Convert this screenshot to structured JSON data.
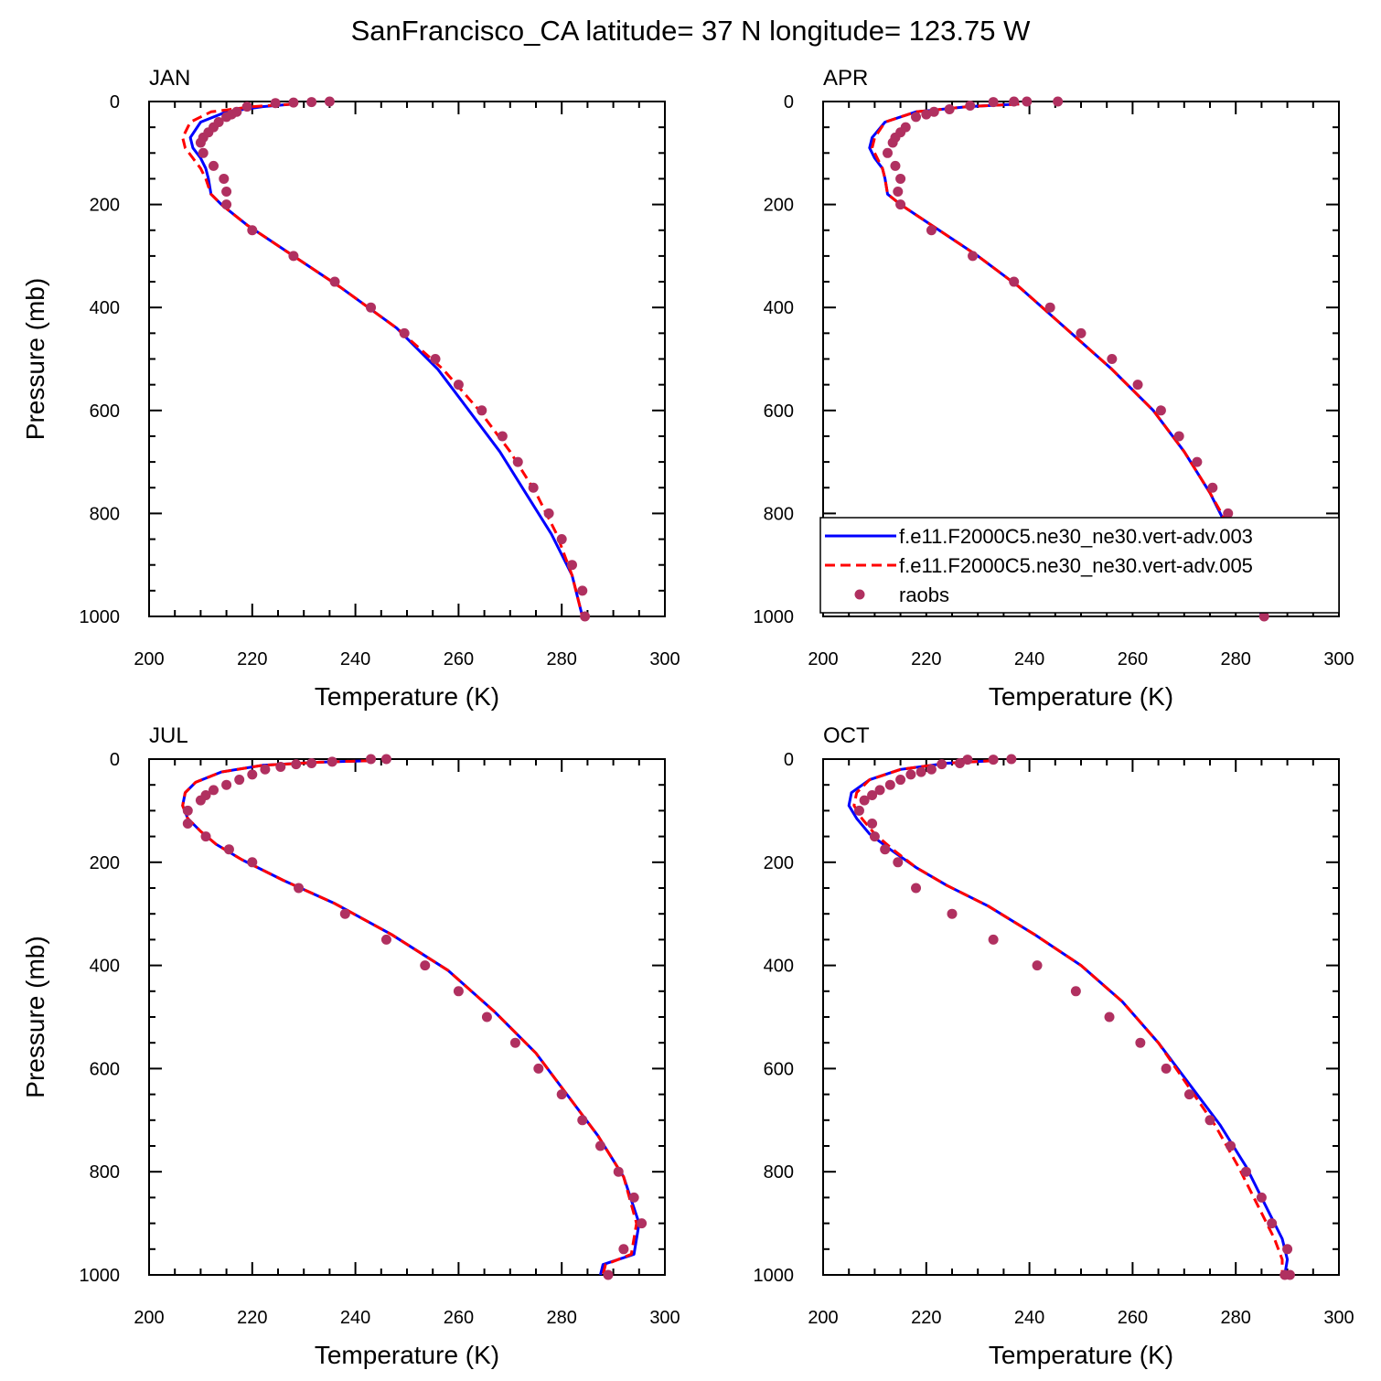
{
  "title": "SanFrancisco_CA  latitude= 37 N longitude= 123.75 W",
  "legend": {
    "placement": "bottom-right of APR panel",
    "entries": [
      {
        "label": "f.e11.F2000C5.ne30_ne30.vert-adv.003",
        "color": "#0000ff",
        "style": "solid"
      },
      {
        "label": "f.e11.F2000C5.ne30_ne30.vert-adv.005",
        "color": "#ff0000",
        "style": "dashed"
      },
      {
        "label": "raobs",
        "color": "#b03060",
        "style": "marker"
      }
    ]
  },
  "chart_data": [
    {
      "type": "line",
      "panel": "JAN",
      "title": "JAN",
      "xlabel": "Temperature (K)",
      "ylabel": "Pressure (mb)",
      "xlim": [
        200,
        300
      ],
      "ylim": [
        1000,
        0
      ],
      "xticks": [
        200,
        220,
        240,
        260,
        280,
        300
      ],
      "yticks": [
        0,
        200,
        400,
        600,
        800,
        1000
      ],
      "series": [
        {
          "name": "f.e11.F2000C5.ne30_ne30.vert-adv.003",
          "color": "#0000ff",
          "style": "solid",
          "x": [
            228,
            222,
            215,
            210,
            208,
            208.5,
            210,
            211,
            211.5,
            212,
            214,
            219,
            228,
            237,
            248,
            256,
            262,
            268,
            273,
            278,
            282,
            284
          ],
          "y": [
            5,
            10,
            20,
            40,
            70,
            90,
            110,
            130,
            150,
            180,
            200,
            240,
            300,
            360,
            440,
            520,
            600,
            680,
            760,
            840,
            920,
            1000
          ]
        },
        {
          "name": "f.e11.F2000C5.ne30_ne30.vert-adv.005",
          "color": "#ff0000",
          "style": "dashed",
          "x": [
            228,
            220,
            212,
            208,
            206.5,
            207,
            208.5,
            210,
            211,
            212,
            214,
            219,
            228,
            237,
            248,
            257,
            264,
            270,
            275,
            279,
            282,
            284
          ],
          "y": [
            5,
            10,
            20,
            40,
            70,
            90,
            110,
            130,
            150,
            180,
            200,
            240,
            300,
            360,
            440,
            520,
            600,
            680,
            760,
            840,
            920,
            1000
          ]
        },
        {
          "name": "raobs",
          "color": "#b03060",
          "style": "marker",
          "x": [
            235,
            231.5,
            228,
            224.5,
            219,
            217,
            216,
            215,
            213.5,
            212.5,
            211.5,
            210.5,
            210,
            210.5,
            212.5,
            214.5,
            215,
            215,
            220,
            228,
            236,
            243,
            249.5,
            255.5,
            260,
            264.5,
            268.5,
            271.5,
            274.5,
            277.5,
            280,
            282,
            284,
            284.5
          ],
          "y": [
            0,
            1,
            2,
            3,
            10,
            20,
            25,
            30,
            40,
            50,
            60,
            70,
            80,
            100,
            125,
            150,
            175,
            200,
            250,
            300,
            350,
            400,
            450,
            500,
            550,
            600,
            650,
            700,
            750,
            800,
            850,
            900,
            950,
            1000
          ]
        }
      ]
    },
    {
      "type": "line",
      "panel": "APR",
      "title": "APR",
      "xlabel": "Temperature (K)",
      "ylabel": "",
      "xlim": [
        200,
        300
      ],
      "ylim": [
        1000,
        0
      ],
      "xticks": [
        200,
        220,
        240,
        260,
        280,
        300
      ],
      "yticks": [
        0,
        200,
        400,
        600,
        800,
        1000
      ],
      "series": [
        {
          "name": "f.e11.F2000C5.ne30_ne30.vert-adv.003",
          "color": "#0000ff",
          "style": "solid",
          "x": [
            238,
            228,
            218,
            212,
            209.5,
            209,
            210,
            211.5,
            212,
            212.5,
            215,
            221,
            230,
            238,
            247,
            256,
            264,
            270,
            275,
            279,
            283,
            285
          ],
          "y": [
            5,
            10,
            20,
            40,
            70,
            90,
            110,
            130,
            150,
            180,
            200,
            240,
            300,
            360,
            440,
            520,
            600,
            680,
            760,
            840,
            920,
            1000
          ]
        },
        {
          "name": "f.e11.F2000C5.ne30_ne30.vert-adv.005",
          "color": "#ff0000",
          "style": "dashed",
          "x": [
            238,
            228,
            218,
            212,
            210,
            209.5,
            210.5,
            211.5,
            212,
            212.5,
            215,
            221,
            230,
            238,
            247,
            256,
            264,
            270,
            275,
            279.5,
            283,
            285
          ],
          "y": [
            5,
            10,
            20,
            40,
            70,
            90,
            110,
            130,
            150,
            180,
            200,
            240,
            300,
            360,
            440,
            520,
            600,
            680,
            760,
            840,
            920,
            1000
          ]
        },
        {
          "name": "raobs",
          "color": "#b03060",
          "style": "marker",
          "x": [
            245.5,
            239.5,
            237,
            233,
            228.5,
            224.5,
            221.5,
            220,
            218,
            216,
            215,
            214,
            213.5,
            212.5,
            214,
            215,
            214.5,
            215,
            221,
            229,
            237,
            244,
            250,
            256,
            261,
            265.5,
            269,
            272.5,
            275.5,
            278.5,
            281,
            283.5,
            285,
            285.5
          ],
          "y": [
            0,
            0,
            0,
            1,
            8,
            15,
            20,
            25,
            30,
            50,
            60,
            70,
            80,
            100,
            125,
            150,
            175,
            200,
            250,
            300,
            350,
            400,
            450,
            500,
            550,
            600,
            650,
            700,
            750,
            800,
            850,
            900,
            950,
            1000
          ]
        }
      ]
    },
    {
      "type": "line",
      "panel": "JUL",
      "title": "JUL",
      "xlabel": "Temperature (K)",
      "ylabel": "Pressure (mb)",
      "xlim": [
        200,
        300
      ],
      "ylim": [
        1000,
        0
      ],
      "xticks": [
        200,
        220,
        240,
        260,
        280,
        300
      ],
      "yticks": [
        0,
        200,
        400,
        600,
        800,
        1000
      ],
      "series": [
        {
          "name": "f.e11.F2000C5.ne30_ne30.vert-adv.003",
          "color": "#0000ff",
          "style": "solid",
          "x": [
            243,
            233,
            222,
            214,
            209,
            207,
            206.5,
            207.5,
            210,
            213,
            218,
            226,
            236,
            247,
            258,
            267,
            275,
            281,
            287,
            292,
            295,
            294,
            288,
            287.5
          ],
          "y": [
            3,
            6,
            12,
            25,
            45,
            65,
            90,
            115,
            140,
            165,
            195,
            235,
            280,
            340,
            410,
            490,
            570,
            650,
            730,
            810,
            900,
            960,
            980,
            1000
          ]
        },
        {
          "name": "f.e11.F2000C5.ne30_ne30.vert-adv.005",
          "color": "#ff0000",
          "style": "dashed",
          "x": [
            243,
            233,
            222,
            214,
            209,
            207,
            206.5,
            207.5,
            210,
            213,
            218,
            226,
            236,
            247,
            258,
            267,
            275,
            281,
            287,
            292,
            294.5,
            293.5,
            288.5,
            288
          ],
          "y": [
            3,
            6,
            12,
            25,
            45,
            65,
            90,
            115,
            140,
            165,
            195,
            235,
            280,
            340,
            410,
            490,
            570,
            650,
            730,
            810,
            900,
            960,
            980,
            1000
          ]
        },
        {
          "name": "raobs",
          "color": "#b03060",
          "style": "marker",
          "x": [
            246,
            243,
            235.5,
            231.5,
            228.5,
            225.5,
            222.5,
            220,
            217.5,
            215,
            212.5,
            211,
            210,
            207.5,
            207.5,
            211,
            215.5,
            220,
            229,
            238,
            246,
            253.5,
            260,
            265.5,
            271,
            275.5,
            280,
            284,
            287.5,
            291,
            294,
            295.5,
            292,
            289
          ],
          "y": [
            0,
            0,
            5,
            8,
            10,
            15,
            20,
            30,
            40,
            50,
            60,
            70,
            80,
            100,
            125,
            150,
            175,
            200,
            250,
            300,
            350,
            400,
            450,
            500,
            550,
            600,
            650,
            700,
            750,
            800,
            850,
            900,
            950,
            1000
          ]
        }
      ]
    },
    {
      "type": "line",
      "panel": "OCT",
      "title": "OCT",
      "xlabel": "Temperature (K)",
      "ylabel": "",
      "xlim": [
        200,
        300
      ],
      "ylim": [
        1000,
        0
      ],
      "xticks": [
        200,
        220,
        240,
        260,
        280,
        300
      ],
      "yticks": [
        0,
        200,
        400,
        600,
        800,
        1000
      ],
      "series": [
        {
          "name": "f.e11.F2000C5.ne30_ne30.vert-adv.003",
          "color": "#0000ff",
          "style": "solid",
          "x": [
            233,
            224,
            215,
            209,
            205.5,
            205,
            206.5,
            209,
            213,
            218,
            224,
            232,
            241,
            250,
            258,
            265,
            271,
            277,
            282,
            286,
            289,
            290,
            289.5
          ],
          "y": [
            3,
            8,
            20,
            40,
            65,
            90,
            115,
            145,
            175,
            210,
            245,
            285,
            340,
            400,
            470,
            550,
            630,
            710,
            790,
            870,
            930,
            970,
            1000
          ]
        },
        {
          "name": "f.e11.F2000C5.ne30_ne30.vert-adv.005",
          "color": "#ff0000",
          "style": "dashed",
          "x": [
            233,
            224,
            215,
            209,
            206.5,
            206,
            207.5,
            210,
            213.5,
            218,
            224,
            232,
            241,
            250,
            258,
            265,
            270.5,
            276,
            280.5,
            284.5,
            287.5,
            289,
            289
          ],
          "y": [
            3,
            8,
            20,
            40,
            65,
            90,
            115,
            145,
            175,
            210,
            245,
            285,
            340,
            400,
            470,
            550,
            630,
            710,
            790,
            870,
            930,
            970,
            1000
          ]
        },
        {
          "name": "raobs",
          "color": "#b03060",
          "style": "marker",
          "x": [
            236.5,
            233,
            228,
            226.5,
            223,
            221,
            219,
            217,
            215,
            213,
            211,
            209.5,
            208,
            207,
            209.5,
            210,
            212,
            214.5,
            218,
            225,
            233,
            241.5,
            249,
            255.5,
            261.5,
            266.5,
            271,
            275,
            279,
            282,
            285,
            287,
            290,
            290.5,
            289.5
          ],
          "y": [
            0,
            1,
            1,
            8,
            10,
            20,
            25,
            30,
            40,
            50,
            60,
            70,
            80,
            100,
            125,
            150,
            175,
            200,
            250,
            300,
            350,
            400,
            450,
            500,
            550,
            600,
            650,
            700,
            750,
            800,
            850,
            900,
            950,
            1000,
            1000
          ]
        }
      ]
    }
  ]
}
